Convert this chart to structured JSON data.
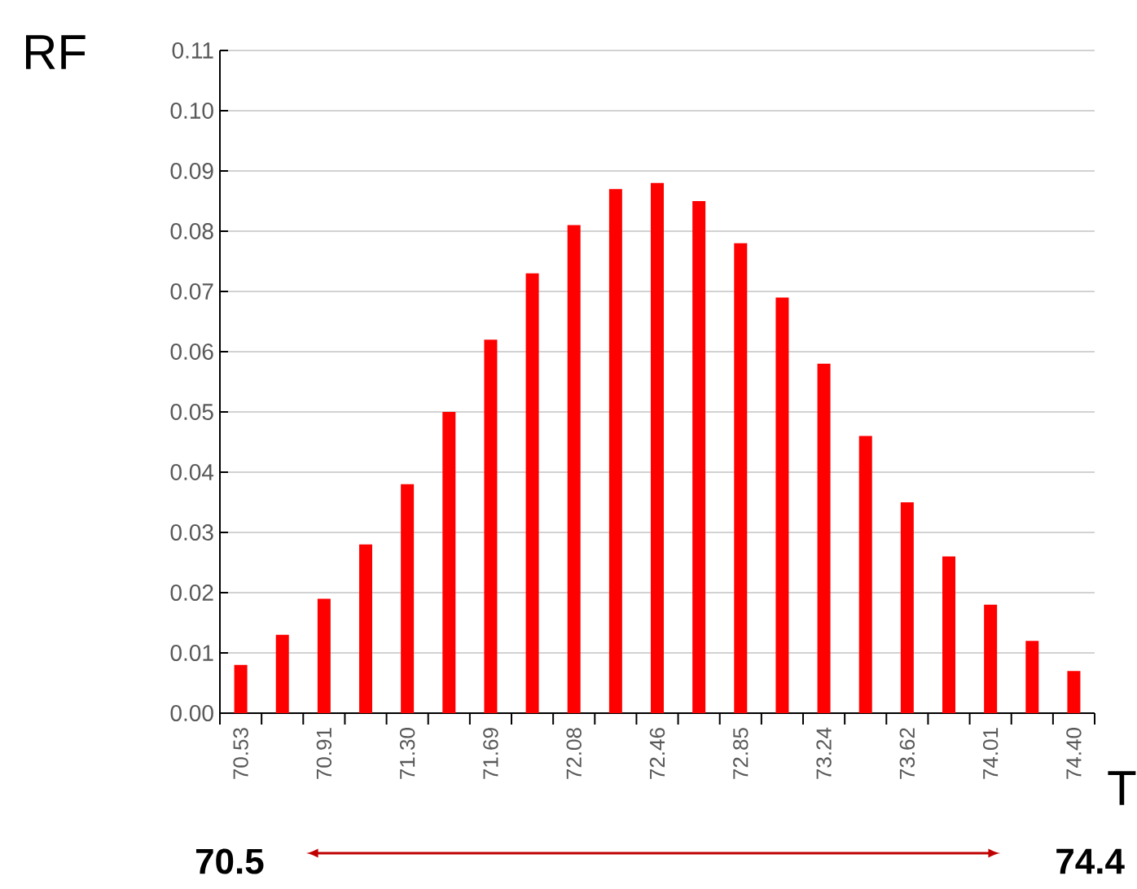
{
  "chart_data": {
    "type": "bar",
    "xlabel": "T",
    "ylabel": "RF",
    "categories": [
      "70.53",
      null,
      "70.91",
      null,
      "71.30",
      null,
      "71.69",
      null,
      "72.08",
      null,
      "72.46",
      null,
      "72.85",
      null,
      "73.24",
      null,
      "73.62",
      null,
      "74.01",
      null,
      "74.40"
    ],
    "values": [
      0.008,
      0.013,
      0.019,
      0.028,
      0.038,
      0.05,
      0.062,
      0.073,
      0.081,
      0.087,
      0.088,
      0.085,
      0.078,
      0.069,
      0.058,
      0.046,
      0.035,
      0.026,
      0.018,
      0.012,
      0.007
    ],
    "color": "#ff0000",
    "ylim": [
      0,
      0.11
    ],
    "yticks": [
      {
        "value": 0,
        "label": "0.00"
      },
      {
        "value": 0.01,
        "label": "0.01"
      },
      {
        "value": 0.02,
        "label": "0.02"
      },
      {
        "value": 0.03,
        "label": "0.03"
      },
      {
        "value": 0.04,
        "label": "0.04"
      },
      {
        "value": 0.05,
        "label": "0.05"
      },
      {
        "value": 0.06,
        "label": "0.06"
      },
      {
        "value": 0.07,
        "label": "0.07"
      },
      {
        "value": 0.08,
        "label": "0.08"
      },
      {
        "value": 0.09,
        "label": "0.09"
      },
      {
        "value": 0.1,
        "label": "0.10"
      },
      {
        "value": 0.11,
        "label": "0.11"
      }
    ],
    "grid": "y",
    "annotations": [
      "70.5",
      "74.4"
    ]
  }
}
